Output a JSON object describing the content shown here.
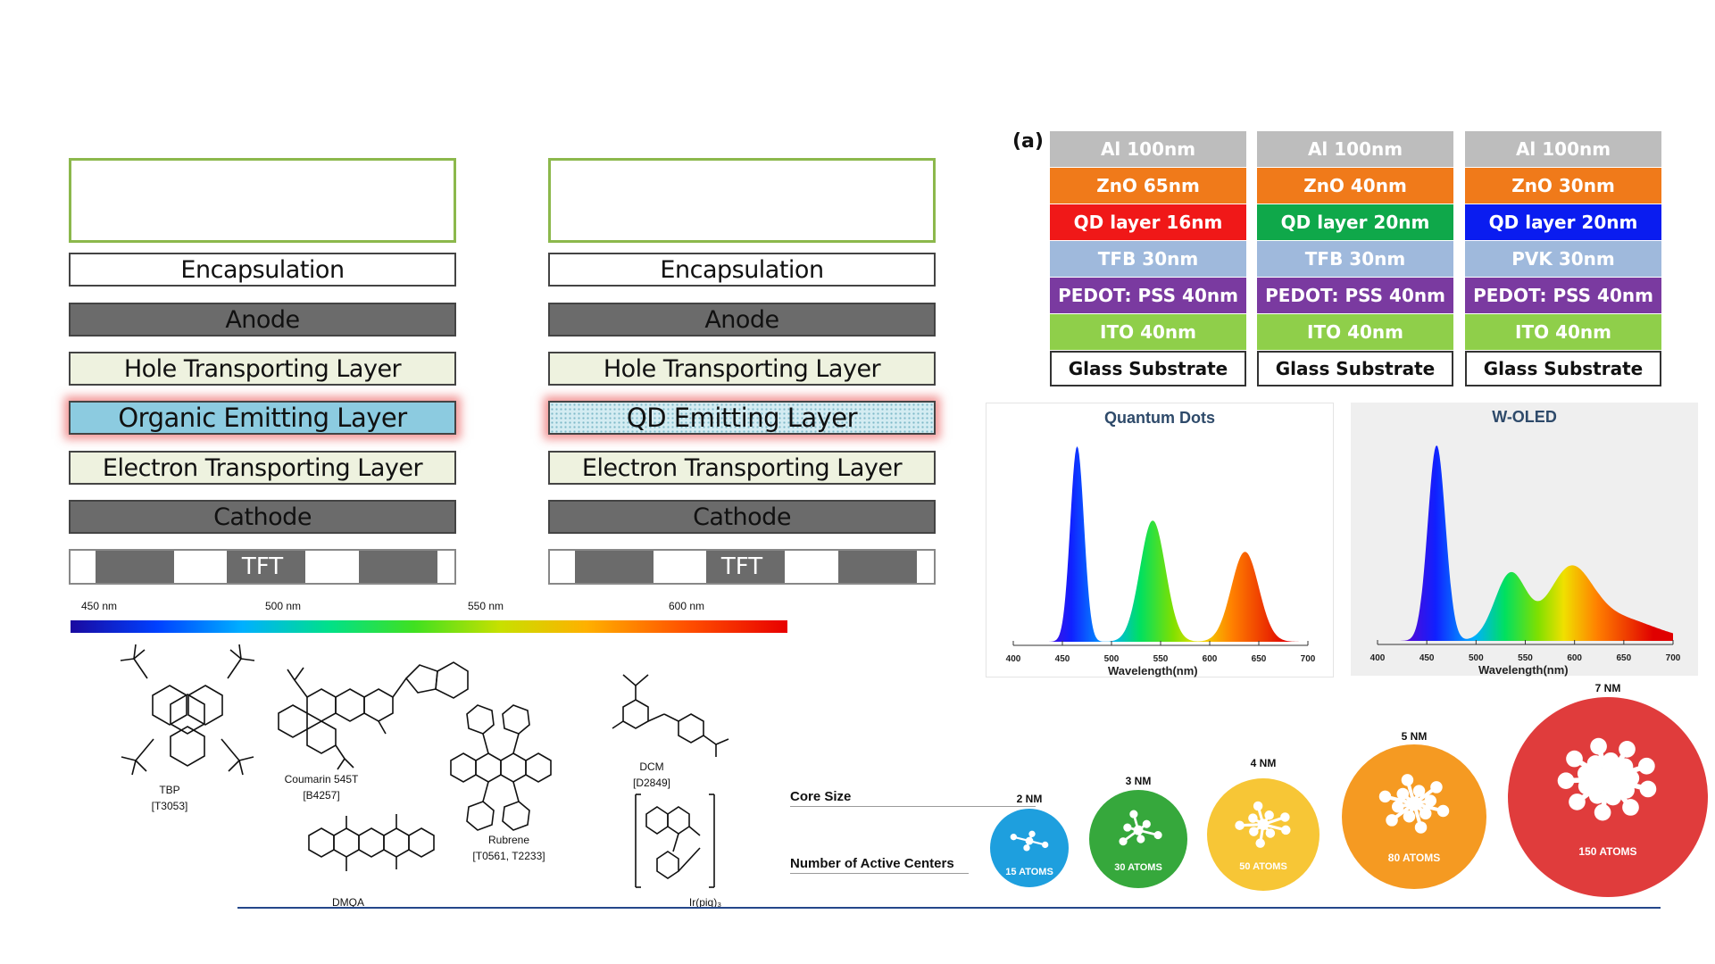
{
  "oled_stack": {
    "layers": [
      "Encapsulation",
      "Anode",
      "Hole Transporting Layer",
      "Organic Emitting Layer",
      "Electron Transporting Layer",
      "Cathode"
    ],
    "tft_label": "TFT",
    "emitting_color": "#8ccbe0"
  },
  "qd_stack": {
    "layers": [
      "Encapsulation",
      "Anode",
      "Hole Transporting Layer",
      "QD Emitting Layer",
      "Electron Transporting Layer",
      "Cathode"
    ],
    "tft_label": "TFT"
  },
  "spectrum_bar": {
    "labels": [
      "450 nm",
      "500 nm",
      "550 nm",
      "600 nm"
    ]
  },
  "devices": {
    "panel_label": "(a)",
    "columns": [
      [
        {
          "text": "Al 100nm",
          "color": "#bdbdbd"
        },
        {
          "text": "ZnO 65nm",
          "color": "#f07a1a"
        },
        {
          "text": "QD layer 16nm",
          "color": "#f01818"
        },
        {
          "text": "TFB 30nm",
          "color": "#9fb9dc"
        },
        {
          "text": "PEDOT: PSS 40nm",
          "color": "#7a3aa0"
        },
        {
          "text": "ITO 40nm",
          "color": "#8fcf4a"
        },
        {
          "text": "Glass Substrate",
          "color": "#ffffff"
        }
      ],
      [
        {
          "text": "Al 100nm",
          "color": "#bdbdbd"
        },
        {
          "text": "ZnO 40nm",
          "color": "#f07a1a"
        },
        {
          "text": "QD layer 20nm",
          "color": "#0fa84a"
        },
        {
          "text": "TFB 30nm",
          "color": "#9fb9dc"
        },
        {
          "text": "PEDOT: PSS 40nm",
          "color": "#7a3aa0"
        },
        {
          "text": "ITO 40nm",
          "color": "#8fcf4a"
        },
        {
          "text": "Glass Substrate",
          "color": "#ffffff"
        }
      ],
      [
        {
          "text": "Al 100nm",
          "color": "#bdbdbd"
        },
        {
          "text": "ZnO 30nm",
          "color": "#f07a1a"
        },
        {
          "text": "QD layer 20nm",
          "color": "#0a1cf0"
        },
        {
          "text": "PVK 30nm",
          "color": "#9fb9dc"
        },
        {
          "text": "PEDOT: PSS 40nm",
          "color": "#7a3aa0"
        },
        {
          "text": "ITO 40nm",
          "color": "#8fcf4a"
        },
        {
          "text": "Glass Substrate",
          "color": "#ffffff"
        }
      ]
    ]
  },
  "spectra": [
    {
      "title": "Quantum Dots",
      "xlabel": "Wavelength(nm)",
      "ticks": [
        "400",
        "450",
        "500",
        "550",
        "600",
        "650",
        "700"
      ],
      "peaks": [
        {
          "center": 465,
          "height": 1.0,
          "width": 7
        },
        {
          "center": 542,
          "height": 0.62,
          "width": 13
        },
        {
          "center": 636,
          "height": 0.46,
          "width": 14
        }
      ]
    },
    {
      "title": "W-OLED",
      "xlabel": "Wavelength(nm)",
      "ticks": [
        "400",
        "450",
        "500",
        "550",
        "600",
        "650",
        "700"
      ],
      "peaks": [
        {
          "center": 460,
          "height": 1.0,
          "width": 9
        },
        {
          "center": 535,
          "height": 0.34,
          "width": 16
        },
        {
          "center": 595,
          "height": 0.32,
          "width": 22
        },
        {
          "center": 640,
          "height": 0.12,
          "width": 40
        }
      ]
    }
  ],
  "molecules": [
    {
      "name": "TBP",
      "code": "[T3053]"
    },
    {
      "name": "Coumarin 545T",
      "code": "[B4257]"
    },
    {
      "name": "Rubrene",
      "code": "[T0561, T2233]"
    },
    {
      "name": "DCM",
      "code": "[D2849]"
    },
    {
      "name": "DMQA",
      "code": ""
    },
    {
      "name": "Ir(piq)₃",
      "code": ""
    }
  ],
  "core_size": {
    "core_label": "Core Size",
    "centers_label": "Number of Active Centers",
    "items": [
      {
        "size": "2 NM",
        "atoms": "15 ATOMS",
        "color": "#1e9fde"
      },
      {
        "size": "3 NM",
        "atoms": "30 ATOMS",
        "color": "#36a83c"
      },
      {
        "size": "4 NM",
        "atoms": "50 ATOMS",
        "color": "#f7c636"
      },
      {
        "size": "5 NM",
        "atoms": "80 ATOMS",
        "color": "#f59a22"
      },
      {
        "size": "7 NM",
        "atoms": "150 ATOMS",
        "color": "#e03c3c"
      }
    ]
  }
}
